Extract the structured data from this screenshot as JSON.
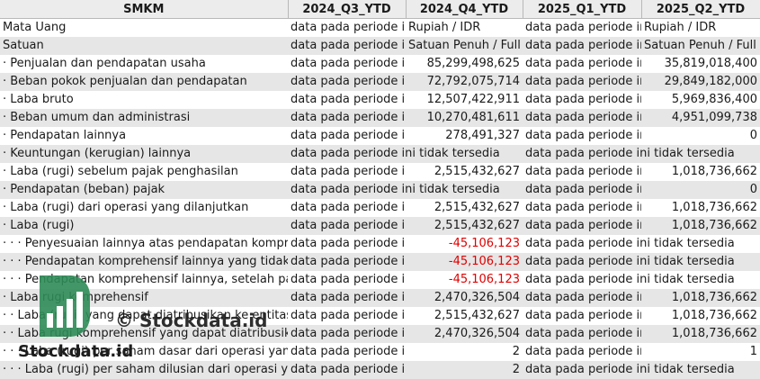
{
  "header": [
    "SMKM",
    "2024_Q3_YTD",
    "2024_Q4_YTD",
    "2025_Q1_YTD",
    "2025_Q2_YTD"
  ],
  "rows": [
    {
      "label": "Mata Uang",
      "cells": [
        "data pada periode in",
        "Rupiah / IDR",
        "data pada periode in",
        "Rupiah / IDR"
      ]
    },
    {
      "label": "Satuan",
      "cells": [
        "data pada periode in",
        "Satuan Penuh / Full A",
        "data pada periode in",
        "Satuan Penuh / Full A"
      ]
    },
    {
      "label": "· Penjualan dan pendapatan usaha",
      "cells": [
        "data pada periode in",
        "85,299,498,625",
        "data pada periode in",
        "35,819,018,400"
      ]
    },
    {
      "label": "· Beban pokok penjualan dan pendapatan",
      "cells": [
        "data pada periode in",
        "72,792,075,714",
        "data pada periode in",
        "29,849,182,000"
      ]
    },
    {
      "label": "· Laba bruto",
      "cells": [
        "data pada periode in",
        "12,507,422,911",
        "data pada periode in",
        "5,969,836,400"
      ]
    },
    {
      "label": "· Beban umum dan administrasi",
      "cells": [
        "data pada periode in",
        "10,270,481,611",
        "data pada periode in",
        "4,951,099,738"
      ]
    },
    {
      "label": "· Pendapatan lainnya",
      "cells": [
        "data pada periode in",
        "278,491,327",
        "data pada periode in",
        "0"
      ]
    },
    {
      "label": "· Keuntungan (kerugian) lainnya",
      "cells": [
        "data pada periode ini tidak tersedia",
        "",
        "data pada periode ini tidak tersedia",
        ""
      ]
    },
    {
      "label": "· Laba (rugi) sebelum pajak penghasilan",
      "cells": [
        "data pada periode in",
        "2,515,432,627",
        "data pada periode in",
        "1,018,736,662"
      ]
    },
    {
      "label": "· Pendapatan (beban) pajak",
      "cells": [
        "data pada periode ini tidak tersedia",
        "",
        "data pada periode in",
        "0"
      ]
    },
    {
      "label": "· Laba (rugi) dari operasi yang dilanjutkan",
      "cells": [
        "data pada periode in",
        "2,515,432,627",
        "data pada periode in",
        "1,018,736,662"
      ]
    },
    {
      "label": "· Laba (rugi)",
      "cells": [
        "data pada periode in",
        "2,515,432,627",
        "data pada periode in",
        "1,018,736,662"
      ]
    },
    {
      "label": "· · · Penyesuaian lainnya atas pendapatan komprehensif",
      "cells": [
        "data pada periode in",
        "-45,106,123",
        "data pada periode ini tidak tersedia",
        ""
      ]
    },
    {
      "label": "· · · Pendapatan komprehensif lainnya yang tidak akan",
      "cells": [
        "data pada periode in",
        "-45,106,123",
        "data pada periode ini tidak tersedia",
        ""
      ]
    },
    {
      "label": "· · · Pendapatan komprehensif lainnya, setelah pajak",
      "cells": [
        "data pada periode in",
        "-45,106,123",
        "data pada periode ini tidak tersedia",
        ""
      ]
    },
    {
      "label": "· Laba rugi komprehensif",
      "cells": [
        "data pada periode in",
        "2,470,326,504",
        "data pada periode in",
        "1,018,736,662"
      ]
    },
    {
      "label": "· · Laba (rugi) yang dapat diatribusikan ke entitas induk",
      "cells": [
        "data pada periode in",
        "2,515,432,627",
        "data pada periode in",
        "1,018,736,662"
      ]
    },
    {
      "label": "· · Laba rugi komprehensif yang dapat diatribusikan",
      "cells": [
        "data pada periode in",
        "2,470,326,504",
        "data pada periode in",
        "1,018,736,662"
      ]
    },
    {
      "label": "· · · Laba (rugi) per saham dasar dari operasi yang dilanjutkan",
      "cells": [
        "data pada periode in",
        "2",
        "data pada periode in",
        "1"
      ]
    },
    {
      "label": "· · · Laba (rugi) per saham dilusian dari operasi yang dilanjutkan",
      "cells": [
        "data pada periode in",
        "2",
        "data pada periode ini tidak tersedia",
        ""
      ]
    }
  ],
  "watermark": {
    "text": "© Stockdata.id",
    "brand": "Stockdata.id",
    "logo_icon": "stockdata-logo-icon",
    "logo_color": "#2e8b57"
  },
  "colors": {
    "negative": "#e00000",
    "stripe": "#e6e6e6",
    "header_bg": "#ececec"
  }
}
